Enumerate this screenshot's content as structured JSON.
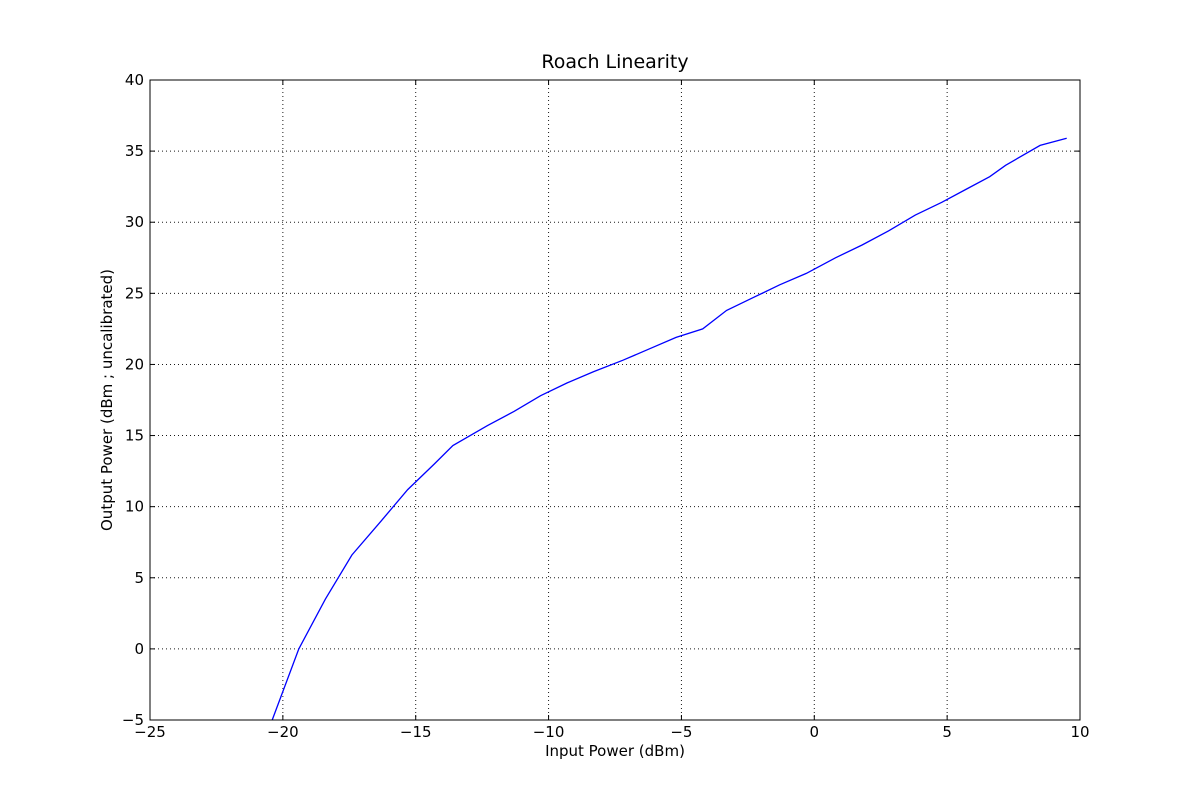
{
  "chart_data": {
    "type": "line",
    "title": "Roach Linearity",
    "xlabel": "Input Power (dBm)",
    "ylabel": "Output Power (dBm ; uncalibrated)",
    "xlim": [
      -25,
      10
    ],
    "ylim": [
      -5,
      40
    ],
    "xticks": [
      -25,
      -20,
      -15,
      -10,
      -5,
      0,
      5,
      10
    ],
    "yticks": [
      -5,
      0,
      5,
      10,
      15,
      20,
      25,
      30,
      35,
      40
    ],
    "xtick_labels": [
      "−25",
      "−20",
      "−15",
      "−10",
      "−5",
      "0",
      "5",
      "10"
    ],
    "ytick_labels": [
      "−5",
      "0",
      "5",
      "10",
      "15",
      "20",
      "25",
      "30",
      "35",
      "40"
    ],
    "grid": true,
    "series": [
      {
        "color": "#0000ff",
        "x": [
          -20.4,
          -19.4,
          -18.4,
          -17.4,
          -16.3,
          -15.3,
          -14.3,
          -13.6,
          -12.3,
          -11.3,
          -10.3,
          -9.3,
          -8.3,
          -7.2,
          -6.2,
          -5.2,
          -4.2,
          -3.3,
          -2.3,
          -1.3,
          -0.3,
          0.8,
          1.8,
          2.8,
          3.8,
          4.8,
          5.7,
          6.6,
          7.2,
          8.5,
          9.5
        ],
        "y": [
          -5.0,
          0.0,
          3.5,
          6.6,
          9.0,
          11.2,
          13.0,
          14.3,
          15.7,
          16.7,
          17.8,
          18.7,
          19.5,
          20.3,
          21.1,
          21.9,
          22.5,
          23.8,
          24.7,
          25.6,
          26.4,
          27.5,
          28.4,
          29.4,
          30.5,
          31.4,
          32.3,
          33.2,
          34.0,
          35.4,
          35.9
        ]
      }
    ]
  }
}
